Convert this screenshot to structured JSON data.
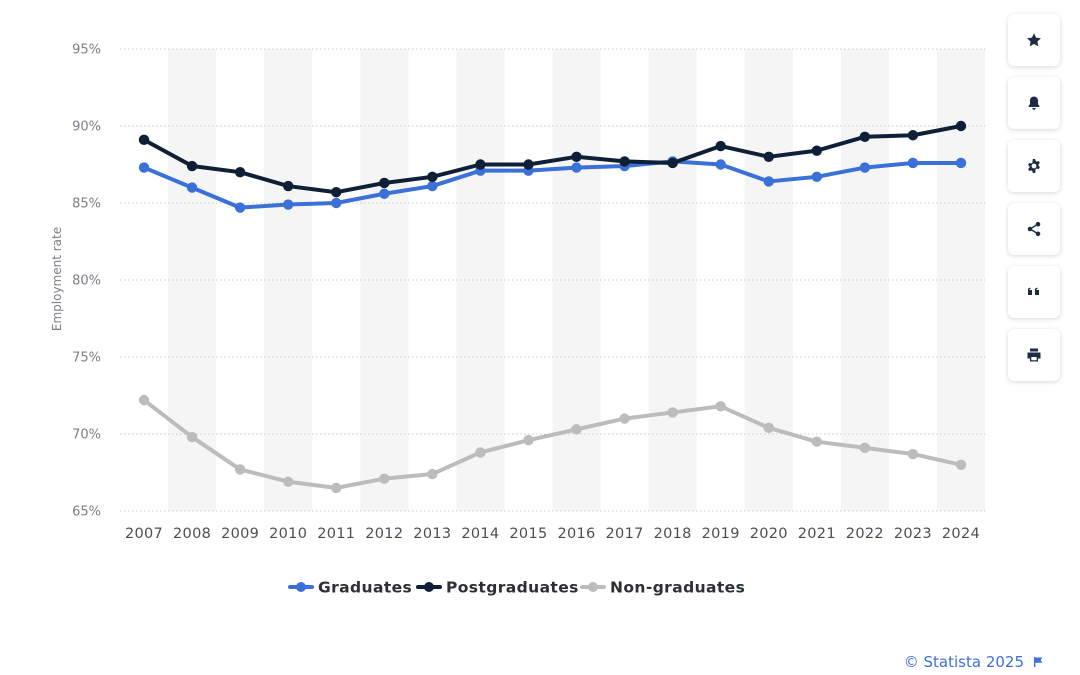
{
  "chart_data": {
    "type": "line",
    "categories": [
      "2007",
      "2008",
      "2009",
      "2010",
      "2011",
      "2012",
      "2013",
      "2014",
      "2015",
      "2016",
      "2017",
      "2018",
      "2019",
      "2020",
      "2021",
      "2022",
      "2023",
      "2024"
    ],
    "ylabel": "Employment rate",
    "ylim": [
      65,
      95
    ],
    "yticks": [
      95,
      90,
      85,
      80,
      75,
      70,
      65
    ],
    "ytick_labels": [
      "95%",
      "90%",
      "85%",
      "80%",
      "75%",
      "70%",
      "65%"
    ],
    "grid": true,
    "legend_position": "bottom",
    "series": [
      {
        "name": "Graduates",
        "color": "#3a70d8",
        "values": [
          87.3,
          86.0,
          84.7,
          84.9,
          85.0,
          85.6,
          86.1,
          87.1,
          87.1,
          87.3,
          87.4,
          87.7,
          87.5,
          86.4,
          86.7,
          87.3,
          87.6,
          87.6
        ]
      },
      {
        "name": "Postgraduates",
        "color": "#0e1f36",
        "values": [
          89.1,
          87.4,
          87.0,
          86.1,
          85.7,
          86.3,
          86.7,
          87.5,
          87.5,
          88.0,
          87.7,
          87.6,
          88.7,
          88.0,
          88.4,
          89.3,
          89.4,
          90.0
        ]
      },
      {
        "name": "Non-graduates",
        "color": "#bcbcbc",
        "values": [
          72.2,
          69.8,
          67.7,
          66.9,
          66.5,
          67.1,
          67.4,
          68.8,
          69.6,
          70.3,
          71.0,
          71.4,
          71.8,
          70.4,
          69.5,
          69.1,
          68.7,
          68.0
        ]
      }
    ]
  },
  "toolbar": {
    "buttons": [
      {
        "name": "favorite",
        "icon": "star-icon"
      },
      {
        "name": "notification",
        "icon": "bell-icon"
      },
      {
        "name": "settings",
        "icon": "gear-icon"
      },
      {
        "name": "share",
        "icon": "share-icon"
      },
      {
        "name": "cite",
        "icon": "quote-icon"
      },
      {
        "name": "print",
        "icon": "print-icon"
      }
    ]
  },
  "footer": {
    "credit": "© Statista 2025"
  }
}
